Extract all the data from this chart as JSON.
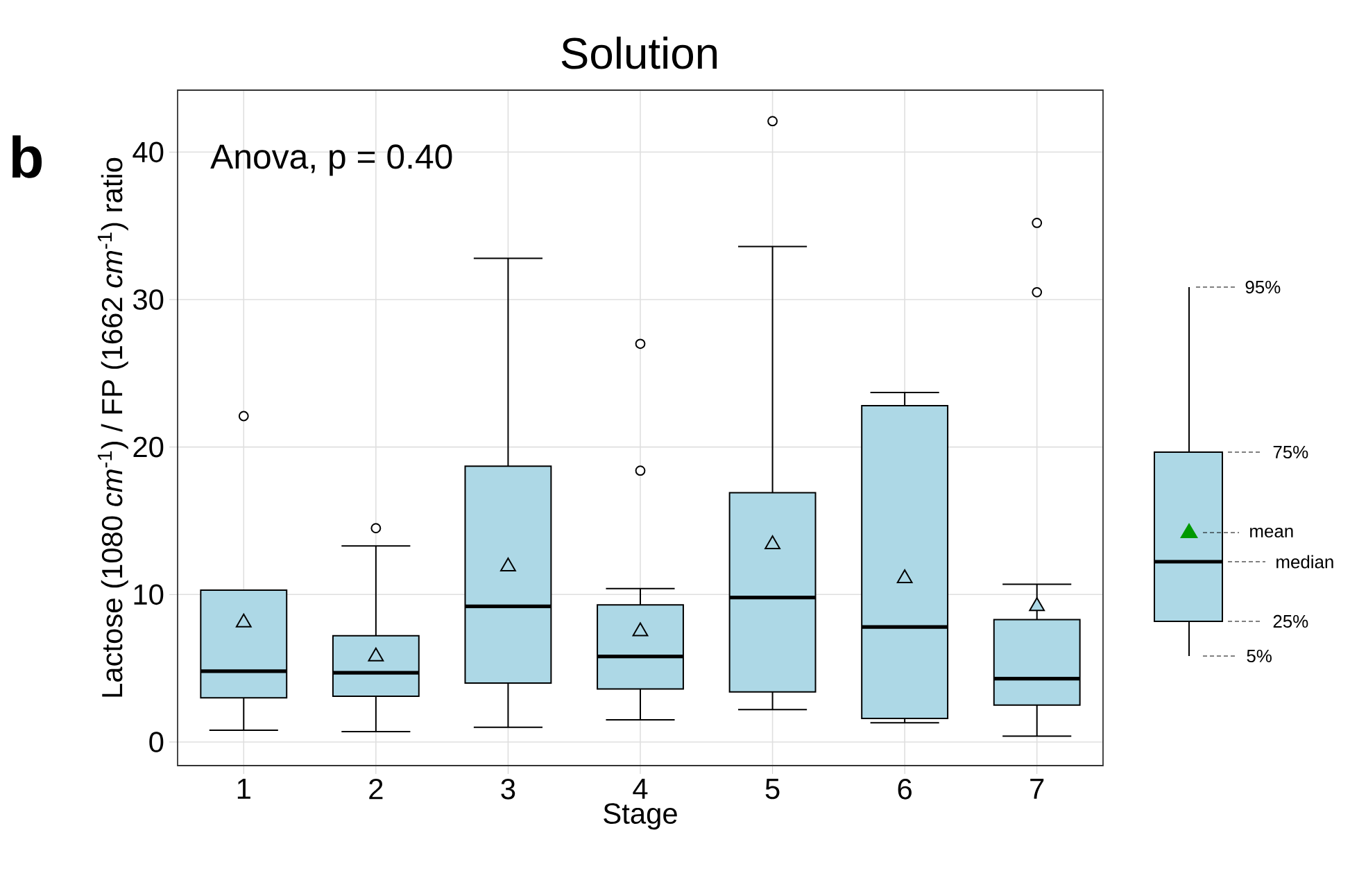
{
  "chart_data": {
    "type": "box",
    "title": "Solution",
    "xlabel": "Stage",
    "ylabel": "Lactose (1080 *cm*$^{-1}$) / FP (1662 *cm*$^{-1}$) ratio",
    "categories": [
      "1",
      "2",
      "3",
      "4",
      "5",
      "6",
      "7"
    ],
    "series": [
      {
        "color": "#add8e6",
        "boxes": [
          {
            "low": 0.8,
            "q1": 3.0,
            "median": 4.8,
            "q3": 10.3,
            "high": 10.3,
            "mean": 8.1,
            "outliers": [
              22.1
            ]
          },
          {
            "low": 0.7,
            "q1": 3.1,
            "median": 4.7,
            "q3": 7.2,
            "high": 13.3,
            "mean": 5.8,
            "outliers": [
              14.5
            ]
          },
          {
            "low": 1.0,
            "q1": 4.0,
            "median": 9.2,
            "q3": 18.7,
            "high": 32.8,
            "mean": 11.9
          },
          {
            "low": 1.5,
            "q1": 3.6,
            "median": 5.8,
            "q3": 9.3,
            "high": 10.4,
            "mean": 7.5,
            "outliers": [
              18.4,
              27.0
            ]
          },
          {
            "low": 2.2,
            "q1": 3.4,
            "median": 9.8,
            "q3": 16.9,
            "high": 33.6,
            "mean": 13.4,
            "outliers": [
              42.1
            ]
          },
          {
            "low": 1.3,
            "q1": 1.6,
            "median": 7.8,
            "q3": 22.8,
            "high": 23.7,
            "mean": 11.1
          },
          {
            "low": 0.4,
            "q1": 2.5,
            "median": 4.3,
            "q3": 8.3,
            "high": 10.7,
            "mean": 9.2,
            "outliers": [
              30.5,
              35.2
            ]
          }
        ]
      }
    ],
    "ylim": [
      -1.6,
      44.2
    ],
    "yticks": [
      0,
      10,
      20,
      30,
      40
    ],
    "grid": true,
    "annotations": [
      "Anova, p = 0.40",
      "b",
      "95%",
      "75%",
      "mean",
      "median",
      "25%",
      "5%"
    ]
  }
}
